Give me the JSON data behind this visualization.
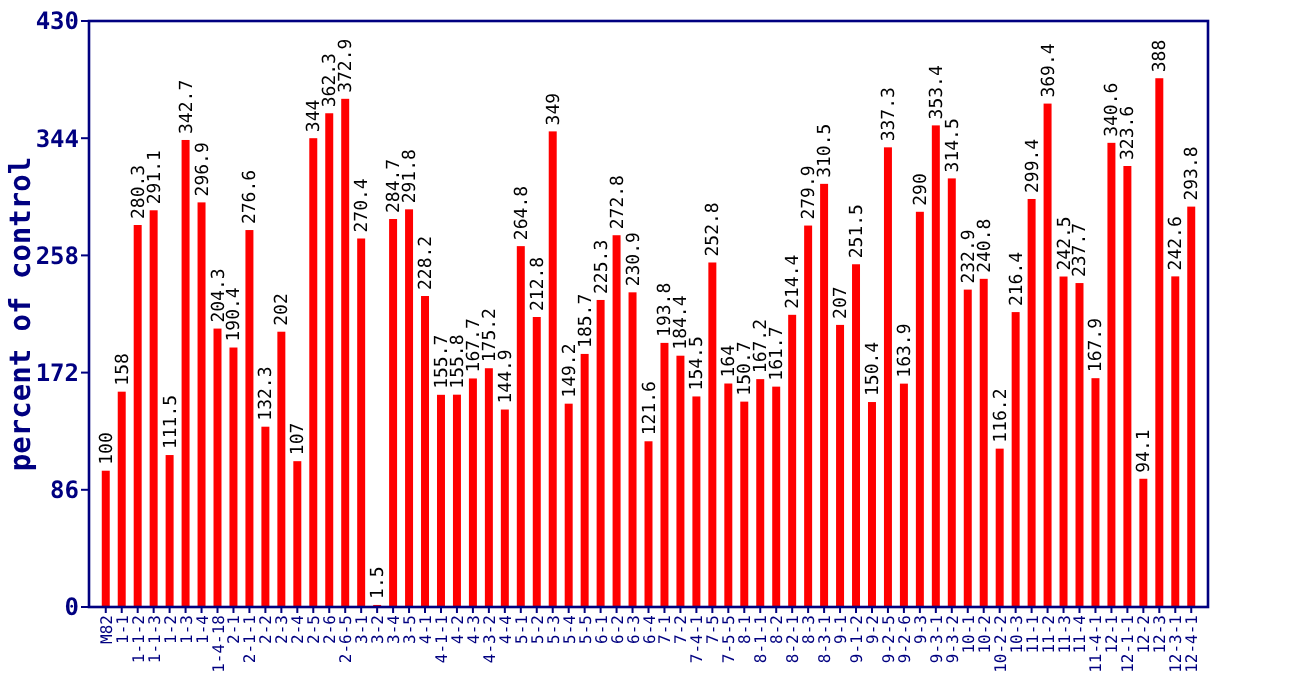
{
  "chart_data": {
    "type": "bar",
    "ylabel": "percent of control",
    "categories": [
      "M82",
      "1-1",
      "1-1-2",
      "1-1-3",
      "1-2",
      "1-3",
      "1-4",
      "1-4-18",
      "2-1",
      "2-1-1",
      "2-2",
      "2-3",
      "2-4",
      "2-5",
      "2-6",
      "2-6-5",
      "3-1",
      "3-2",
      "3-4",
      "3-5",
      "4-1",
      "4-1-1",
      "4-2",
      "4-3",
      "4-3-2",
      "4-4",
      "5-1",
      "5-2",
      "5-3",
      "5-4",
      "5-5",
      "6-1",
      "6-2",
      "6-3",
      "6-4",
      "7-1",
      "7-2",
      "7-4-1",
      "7-5",
      "7-5-5",
      "8-1",
      "8-1-1",
      "8-2",
      "8-2-1",
      "8-3",
      "8-3-1",
      "9-1",
      "9-1-2",
      "9-2",
      "9-2-5",
      "9-2-6",
      "9-3",
      "9-3-1",
      "9-3-2",
      "10-1",
      "10-2",
      "10-2-2",
      "10-3",
      "11-1",
      "11-2",
      "11-3",
      "11-4",
      "11-4-1",
      "12-1",
      "12-1-1",
      "12-2",
      "12-3",
      "12-3-1",
      "12-4-1"
    ],
    "values": [
      100,
      158,
      280.3,
      291.1,
      111.5,
      342.7,
      296.9,
      204.3,
      190.4,
      276.6,
      132.3,
      202,
      107,
      344,
      362.3,
      372.9,
      270.4,
      1.5,
      284.7,
      291.8,
      228.2,
      155.7,
      155.8,
      167.7,
      175.2,
      144.9,
      264.8,
      212.8,
      349,
      149.2,
      185.7,
      225.3,
      272.8,
      230.9,
      121.6,
      193.8,
      184.4,
      154.5,
      252.8,
      164,
      150.7,
      167.2,
      161.7,
      214.4,
      279.9,
      310.5,
      207,
      251.5,
      150.4,
      337.3,
      163.9,
      290,
      353.4,
      314.5,
      232.9,
      240.8,
      116.2,
      216.4,
      299.4,
      369.4,
      242.5,
      237.7,
      167.9,
      340.6,
      323.6,
      94.1,
      388,
      242.6,
      293.8
    ],
    "color": "#ff0000",
    "ylim": [
      0,
      430
    ],
    "yticks": [
      0,
      86,
      172,
      258,
      344,
      430
    ],
    "data_labels": true
  }
}
